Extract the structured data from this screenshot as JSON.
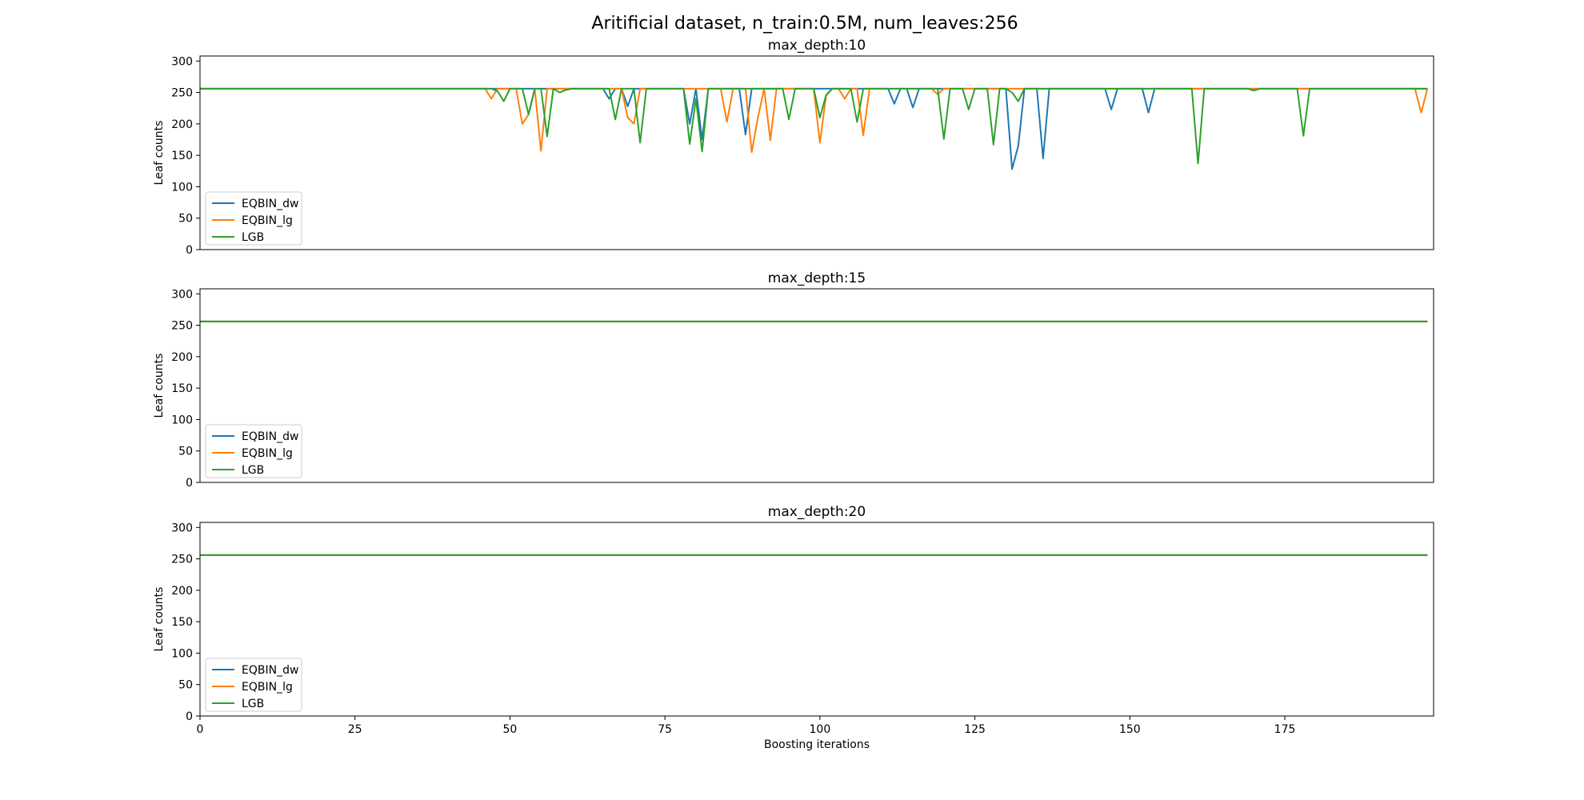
{
  "figure": {
    "suptitle": "Aritificial dataset, n_train:0.5M, num_leaves:256"
  },
  "colors": {
    "EQBIN_dw": "#1f77b4",
    "EQBIN_lg": "#ff7f0e",
    "LGB": "#2ca02c",
    "axes": "#000000",
    "legend_border": "#cccccc"
  },
  "chart_data": [
    {
      "type": "line",
      "title": "max_depth:10",
      "ylabel": "Leaf counts",
      "xlabel": "",
      "xlim": [
        0,
        199
      ],
      "ylim": [
        0,
        308
      ],
      "yticks": [
        0,
        50,
        100,
        150,
        200,
        250,
        300
      ],
      "xticks": [],
      "legend": {
        "placement": "lower-left",
        "entries": [
          "EQBIN_dw",
          "EQBIN_lg",
          "LGB"
        ]
      },
      "baseline": 256,
      "n_iterations": 199,
      "series": [
        {
          "name": "EQBIN_dw",
          "dips": [
            [
              66,
              240
            ],
            [
              69,
              228
            ],
            [
              71,
              256
            ],
            [
              79,
              200
            ],
            [
              80,
              256
            ],
            [
              81,
              175
            ],
            [
              88,
              183
            ],
            [
              112,
              232
            ],
            [
              115,
              226
            ],
            [
              119,
              256
            ],
            [
              131,
              128
            ],
            [
              132,
              165
            ],
            [
              136,
              145
            ],
            [
              147,
              223
            ],
            [
              149,
              256
            ],
            [
              153,
              218
            ]
          ]
        },
        {
          "name": "EQBIN_lg",
          "dips": [
            [
              47,
              240
            ],
            [
              49,
              256
            ],
            [
              52,
              200
            ],
            [
              53,
              215
            ],
            [
              55,
              157
            ],
            [
              56,
              256
            ],
            [
              69,
              210
            ],
            [
              70,
              200
            ],
            [
              71,
              256
            ],
            [
              85,
              203
            ],
            [
              89,
              155
            ],
            [
              90,
              210
            ],
            [
              92,
              174
            ],
            [
              93,
              256
            ],
            [
              100,
              170
            ],
            [
              101,
              245
            ],
            [
              104,
              240
            ],
            [
              107,
              182
            ],
            [
              108,
              256
            ],
            [
              119,
              247
            ],
            [
              197,
              218
            ]
          ]
        },
        {
          "name": "LGB",
          "dips": [
            [
              48,
              252
            ],
            [
              49,
              236
            ],
            [
              51,
              256
            ],
            [
              53,
              215
            ],
            [
              54,
              256
            ],
            [
              56,
              180
            ],
            [
              58,
              250
            ],
            [
              59,
              254
            ],
            [
              67,
              207
            ],
            [
              68,
              256
            ],
            [
              71,
              170
            ],
            [
              79,
              168
            ],
            [
              80,
              240
            ],
            [
              81,
              156
            ],
            [
              82,
              256
            ],
            [
              95,
              207
            ],
            [
              96,
              256
            ],
            [
              100,
              210
            ],
            [
              101,
              246
            ],
            [
              106,
              203
            ],
            [
              107,
              256
            ],
            [
              120,
              176
            ],
            [
              121,
              256
            ],
            [
              124,
              223
            ],
            [
              125,
              256
            ],
            [
              128,
              167
            ],
            [
              129,
              256
            ],
            [
              131,
              250
            ],
            [
              132,
              236
            ],
            [
              133,
              256
            ],
            [
              161,
              137
            ],
            [
              162,
              256
            ],
            [
              170,
              253
            ],
            [
              178,
              181
            ],
            [
              179,
              256
            ]
          ]
        }
      ]
    },
    {
      "type": "line",
      "title": "max_depth:15",
      "ylabel": "Leaf counts",
      "xlabel": "",
      "xlim": [
        0,
        199
      ],
      "ylim": [
        0,
        308
      ],
      "yticks": [
        0,
        50,
        100,
        150,
        200,
        250,
        300
      ],
      "xticks": [],
      "legend": {
        "placement": "lower-left",
        "entries": [
          "EQBIN_dw",
          "EQBIN_lg",
          "LGB"
        ]
      },
      "baseline": 256,
      "n_iterations": 199,
      "series": [
        {
          "name": "EQBIN_dw",
          "dips": []
        },
        {
          "name": "EQBIN_lg",
          "dips": []
        },
        {
          "name": "LGB",
          "dips": []
        }
      ]
    },
    {
      "type": "line",
      "title": "max_depth:20",
      "ylabel": "Leaf counts",
      "xlabel": "Boosting iterations",
      "xlim": [
        0,
        199
      ],
      "ylim": [
        0,
        308
      ],
      "yticks": [
        0,
        50,
        100,
        150,
        200,
        250,
        300
      ],
      "xticks": [
        0,
        25,
        50,
        75,
        100,
        125,
        150,
        175
      ],
      "legend": {
        "placement": "lower-left",
        "entries": [
          "EQBIN_dw",
          "EQBIN_lg",
          "LGB"
        ]
      },
      "baseline": 256,
      "n_iterations": 199,
      "series": [
        {
          "name": "EQBIN_dw",
          "dips": []
        },
        {
          "name": "EQBIN_lg",
          "dips": []
        },
        {
          "name": "LGB",
          "dips": []
        }
      ]
    }
  ]
}
